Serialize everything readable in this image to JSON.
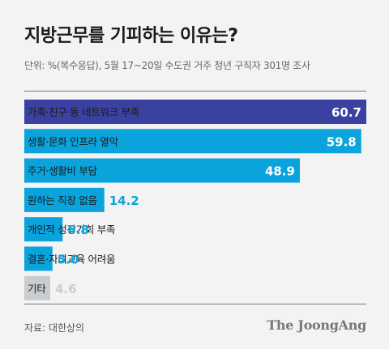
{
  "title": "지방근무를 기피하는 이유는?",
  "subtitle": "단위: %(복수응답), 5월 17~20일 수도권 거주 청년 구직자 301명 조사",
  "source": "자료: 대한상의",
  "brand": "The JoongAng",
  "colors": {
    "highlight": "#3b41a0",
    "bar": "#0aa3dc",
    "muted": "#c9ccd0",
    "value_inside": "#ffffff",
    "value_outside": "#0aa3dc",
    "value_muted": "#c9ccd0"
  },
  "chart_data": {
    "type": "bar",
    "orientation": "horizontal",
    "categories": [
      "가족·친구 등 네트워크 부족",
      "생활·문화 인프라 열악",
      "주거·생활비 부담",
      "원하는 직장 없음",
      "개인적 성장기회 부족",
      "결혼·자녀교육 어려움",
      "기타"
    ],
    "values": [
      60.7,
      59.8,
      48.9,
      14.2,
      6.8,
      5.0,
      4.6
    ],
    "xlim": [
      0,
      60.7
    ],
    "grid": false,
    "legend": "none"
  }
}
